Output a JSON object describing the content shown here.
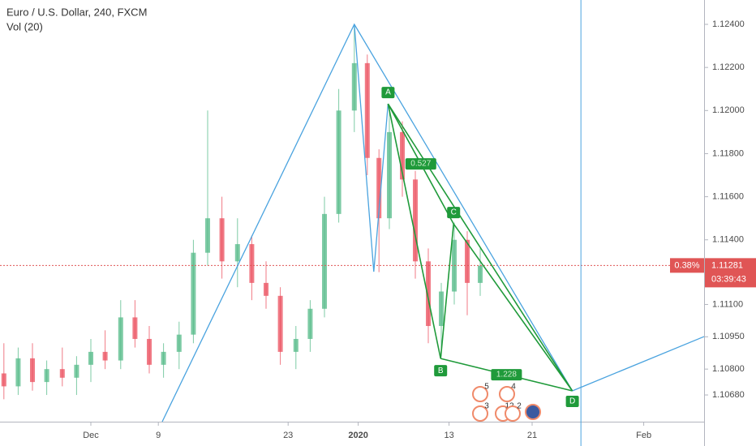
{
  "chart_data": {
    "type": "candlestick",
    "title": "Euro / U.S. Dollar, 240, FXCM",
    "subtitle": "Vol (20)",
    "up_color": "#53b987",
    "down_color": "#eb4d5c",
    "xlim": [
      -12.2,
      42.05
    ],
    "ylim": [
      1.10556,
      1.12513
    ],
    "xticks": [
      {
        "value": -5.2,
        "label": "Dec"
      },
      {
        "value": 0,
        "label": "9"
      },
      {
        "value": 10,
        "label": "23"
      },
      {
        "value": 15.4,
        "label": "2020"
      },
      {
        "value": 22.4,
        "label": "13"
      },
      {
        "value": 28.8,
        "label": "21"
      },
      {
        "value": 37.4,
        "label": "Feb"
      }
    ],
    "yticks": [
      {
        "value": 1.124,
        "label": "1.12400"
      },
      {
        "value": 1.122,
        "label": "1.12200"
      },
      {
        "value": 1.12,
        "label": "1.12000"
      },
      {
        "value": 1.118,
        "label": "1.11800"
      },
      {
        "value": 1.116,
        "label": "1.11600"
      },
      {
        "value": 1.114,
        "label": "1.11400"
      },
      {
        "value": 1.111,
        "label": "1.11100"
      },
      {
        "value": 1.1095,
        "label": "1.10950"
      },
      {
        "value": 1.108,
        "label": "1.10800"
      },
      {
        "value": 1.1068,
        "label": "1.10680"
      }
    ],
    "x": [
      -11.9,
      -10.8,
      -9.7,
      -8.6,
      -7.4,
      -6.3,
      -5.2,
      -4.1,
      -2.9,
      -1.8,
      -0.7,
      0.4,
      1.6,
      2.7,
      3.8,
      4.9,
      6.1,
      7.2,
      8.3,
      9.4,
      10.6,
      11.7,
      12.8,
      13.9,
      15.1,
      16.1,
      17.0,
      17.8,
      18.8,
      19.8,
      20.8,
      21.8,
      22.8,
      23.8,
      24.8
    ],
    "open": [
      1.1078,
      1.1072,
      1.1085,
      1.1074,
      1.108,
      1.1076,
      1.1082,
      1.1088,
      1.1084,
      1.1104,
      1.1094,
      1.1082,
      1.1088,
      1.1096,
      1.1134,
      1.115,
      1.113,
      1.1138,
      1.112,
      1.1114,
      1.1088,
      1.1094,
      1.1108,
      1.1152,
      1.12,
      1.1222,
      1.1178,
      1.115,
      1.119,
      1.1168,
      1.113,
      1.11,
      1.1116,
      1.114,
      1.112
    ],
    "high": [
      1.1092,
      1.109,
      1.1092,
      1.1084,
      1.109,
      1.1086,
      1.1094,
      1.1098,
      1.1112,
      1.1112,
      1.11,
      1.1092,
      1.1102,
      1.114,
      1.12,
      1.116,
      1.115,
      1.1142,
      1.113,
      1.1118,
      1.11,
      1.1112,
      1.116,
      1.121,
      1.1239,
      1.1226,
      1.1182,
      1.1202,
      1.1195,
      1.1172,
      1.1136,
      1.112,
      1.1148,
      1.1144,
      1.1136
    ],
    "low": [
      1.1066,
      1.1068,
      1.107,
      1.1068,
      1.1072,
      1.1068,
      1.1074,
      1.108,
      1.108,
      1.109,
      1.1078,
      1.1076,
      1.108,
      1.1092,
      1.1128,
      1.1122,
      1.1118,
      1.1112,
      1.1108,
      1.1082,
      1.108,
      1.1088,
      1.1104,
      1.1148,
      1.119,
      1.117,
      1.1125,
      1.1145,
      1.116,
      1.1122,
      1.1092,
      1.1086,
      1.111,
      1.1105,
      1.1114
    ],
    "close": [
      1.1072,
      1.1085,
      1.1074,
      1.108,
      1.1076,
      1.1082,
      1.1088,
      1.1084,
      1.1104,
      1.1094,
      1.1082,
      1.1088,
      1.1096,
      1.1134,
      1.115,
      1.113,
      1.1138,
      1.112,
      1.1114,
      1.1088,
      1.1094,
      1.1108,
      1.1152,
      1.12,
      1.1222,
      1.1178,
      1.115,
      1.119,
      1.1168,
      1.113,
      1.11,
      1.1116,
      1.114,
      1.112,
      1.1128
    ],
    "drawings": [
      {
        "color": "#4aa3df",
        "x": [
          0.3,
          15.1,
          31.9
        ],
        "y": [
          1.10556,
          1.124,
          1.10699
        ]
      },
      {
        "color": "#4aa3df",
        "x": [
          15.1,
          16.6,
          17.7
        ],
        "y": [
          1.124,
          1.11252,
          1.12031
        ]
      },
      {
        "color": "#4aa3df",
        "x": [
          31.9,
          42.05
        ],
        "y": [
          1.10699,
          1.10951
        ]
      }
    ],
    "vertical_line": {
      "color": "#4aa3df",
      "x": 32.56
    },
    "pattern": {
      "color": "#1f9a3a",
      "labels": [
        "A",
        "B",
        "C",
        "D"
      ],
      "x": [
        17.7,
        21.75,
        22.75,
        31.9
      ],
      "y": [
        1.12031,
        1.10849,
        1.11474,
        1.10699
      ]
    },
    "ratios": [
      0.527,
      1.228
    ],
    "last_price": {
      "value": 1.11281,
      "change": {
        "value": 0.38,
        "label": "0.38%"
      },
      "countdown": "03:39:43",
      "color": "#e05555"
    },
    "events": [
      5,
      4,
      3,
      12,
      2
    ]
  }
}
